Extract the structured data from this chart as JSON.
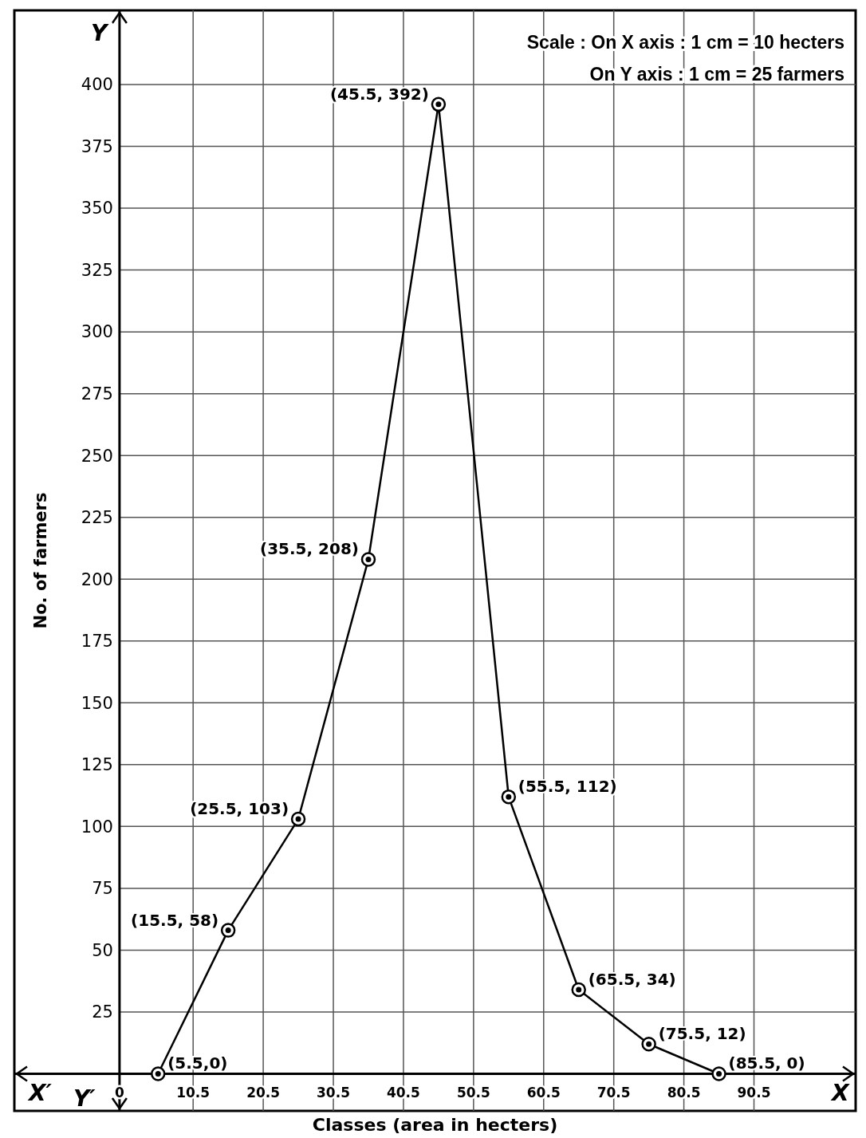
{
  "chart_data": {
    "type": "line",
    "xlabel": "Classes (area in hecters)",
    "ylabel": "No. of farmers",
    "annotations": [
      "Scale : On X axis : 1 cm = 10 hecters",
      "On Y axis : 1 cm = 25 farmers",
      "X",
      "X′",
      "Y",
      "Y′"
    ],
    "series": [
      {
        "color": "#000000",
        "x": [
          5.5,
          15.5,
          25.5,
          35.5,
          45.5,
          55.5,
          65.5,
          75.5,
          85.5
        ],
        "values": [
          0,
          58,
          103,
          208,
          392,
          112,
          34,
          12,
          0
        ],
        "value_labels": [
          "(5.5,0)",
          "(15.5, 58)",
          "(25.5, 103)",
          "(35.5, 208)",
          "(45.5, 392)",
          "(55.5, 112)",
          "(65.5, 34)",
          "(75.5, 12)",
          "(85.5, 0)"
        ]
      }
    ],
    "xlim": [
      -15,
      105
    ],
    "ylim": [
      -15,
      430
    ],
    "xticks": [
      {
        "value": 0,
        "label": "0"
      },
      10.5,
      20.5,
      30.5,
      40.5,
      50.5,
      60.5,
      70.5,
      80.5,
      90.5
    ],
    "yticks": [
      25,
      50,
      75,
      100,
      125,
      150,
      175,
      200,
      225,
      250,
      275,
      300,
      325,
      350,
      375,
      400
    ],
    "grid": true,
    "marker": "circle",
    "line_style": "solid"
  }
}
